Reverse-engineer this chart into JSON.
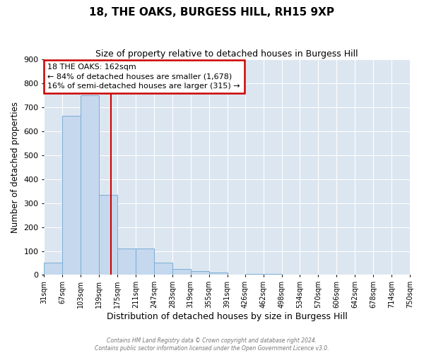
{
  "title": "18, THE OAKS, BURGESS HILL, RH15 9XP",
  "subtitle": "Size of property relative to detached houses in Burgess Hill",
  "xlabel": "Distribution of detached houses by size in Burgess Hill",
  "ylabel": "Number of detached properties",
  "bar_color": "#c5d8ed",
  "bar_edge_color": "#7badd4",
  "background_color": "#dce6f1",
  "fig_background": "#ffffff",
  "grid_color": "#ffffff",
  "bin_labels": [
    "31sqm",
    "67sqm",
    "103sqm",
    "139sqm",
    "175sqm",
    "211sqm",
    "247sqm",
    "283sqm",
    "319sqm",
    "355sqm",
    "391sqm",
    "426sqm",
    "462sqm",
    "498sqm",
    "534sqm",
    "570sqm",
    "606sqm",
    "642sqm",
    "678sqm",
    "714sqm",
    "750sqm"
  ],
  "bin_edges": [
    31,
    67,
    103,
    139,
    175,
    211,
    247,
    283,
    319,
    355,
    391,
    426,
    462,
    498,
    534,
    570,
    606,
    642,
    678,
    714,
    750
  ],
  "bar_heights": [
    50,
    665,
    750,
    335,
    110,
    110,
    50,
    25,
    15,
    10,
    0,
    5,
    5,
    0,
    0,
    0,
    0,
    0,
    0,
    0
  ],
  "vline_x": 162,
  "vline_color": "#cc0000",
  "annotation_line1": "18 THE OAKS: 162sqm",
  "annotation_line2": "← 84% of detached houses are smaller (1,678)",
  "annotation_line3": "16% of semi-detached houses are larger (315) →",
  "annotation_box_color": "#cc0000",
  "annotation_box_fill": "#ffffff",
  "ylim": [
    0,
    900
  ],
  "yticks": [
    0,
    100,
    200,
    300,
    400,
    500,
    600,
    700,
    800,
    900
  ],
  "footer_line1": "Contains HM Land Registry data © Crown copyright and database right 2024.",
  "footer_line2": "Contains public sector information licensed under the Open Government Licence v3.0."
}
